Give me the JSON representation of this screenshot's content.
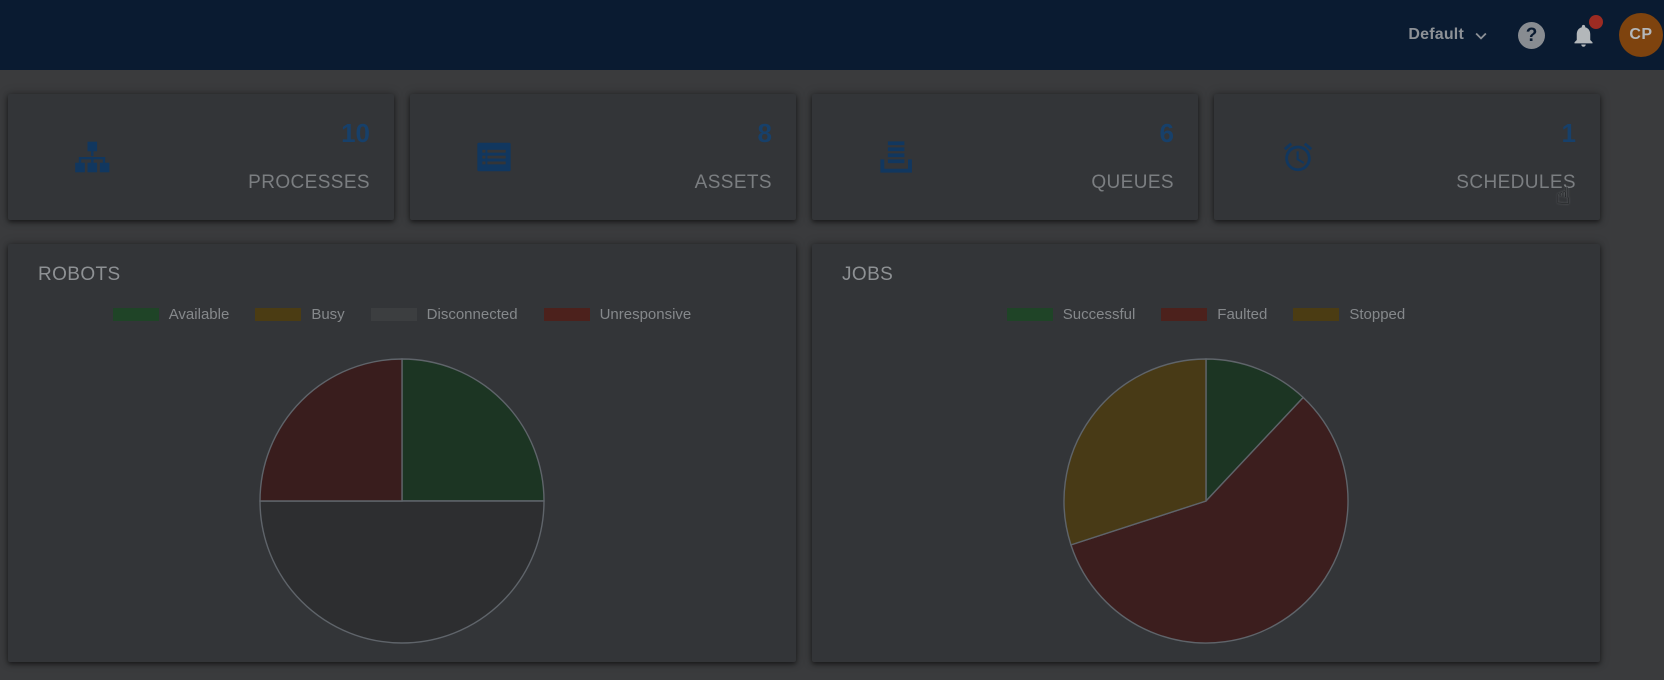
{
  "topbar": {
    "tenant_label": "Default",
    "help_glyph": "?",
    "notifications": {
      "icon": "bell-icon",
      "unread_dot_visible": true
    },
    "avatar_initials": "CP"
  },
  "stats": {
    "cards": [
      {
        "icon": "process-tree-icon",
        "value": "10",
        "label": "PROCESSES"
      },
      {
        "icon": "assets-list-icon",
        "value": "8",
        "label": "ASSETS"
      },
      {
        "icon": "queues-stack-icon",
        "value": "6",
        "label": "QUEUES"
      },
      {
        "icon": "schedules-alarm-icon",
        "value": "1",
        "label": "SCHEDULES"
      }
    ]
  },
  "chart_data": [
    {
      "id": "robots",
      "type": "pie",
      "title": "ROBOTS",
      "legend_position": "top",
      "start_angle_deg": -90,
      "direction": "clockwise",
      "slices": [
        {
          "label": "Available",
          "percent": 25,
          "color": "#1c3523",
          "legend_color": "#1f4427"
        },
        {
          "label": "Busy",
          "percent": 0,
          "color": "#4b3c13",
          "legend_color": "#4b3c13"
        },
        {
          "label": "Disconnected",
          "percent": 50,
          "color": "#2d2e30",
          "legend_color": "#3c3e40"
        },
        {
          "label": "Unresponsive",
          "percent": 25,
          "color": "#391d1d",
          "legend_color": "#4c211c"
        }
      ]
    },
    {
      "id": "jobs",
      "type": "pie",
      "title": "JOBS",
      "legend_position": "top",
      "start_angle_deg": -90,
      "direction": "clockwise",
      "slices": [
        {
          "label": "Successful",
          "percent": 12,
          "color": "#1c3523",
          "legend_color": "#1f4427"
        },
        {
          "label": "Faulted",
          "percent": 58,
          "color": "#3c1e1e",
          "legend_color": "#4c211c"
        },
        {
          "label": "Stopped",
          "percent": 30,
          "color": "#483a16",
          "legend_color": "#4b3c13"
        }
      ]
    }
  ],
  "cursor": {
    "glyph": "☝",
    "near": "SCHEDULES"
  },
  "colors": {
    "topbar_bg": "#0a1b31",
    "topbar_text": "#8d9196",
    "page_bg": "#3a3b3d",
    "card_bg": "#333538",
    "stat_value": "#17406a",
    "stat_label": "#7b7e81",
    "stat_icon": "#11375f",
    "panel_title": "#8e9194",
    "legend_text": "#85888b",
    "slice_border": "#5f646a",
    "avatar_bg": "#7e430e",
    "notification_badge": "#9c2b22",
    "bell_icon": "#b3b7ba"
  }
}
